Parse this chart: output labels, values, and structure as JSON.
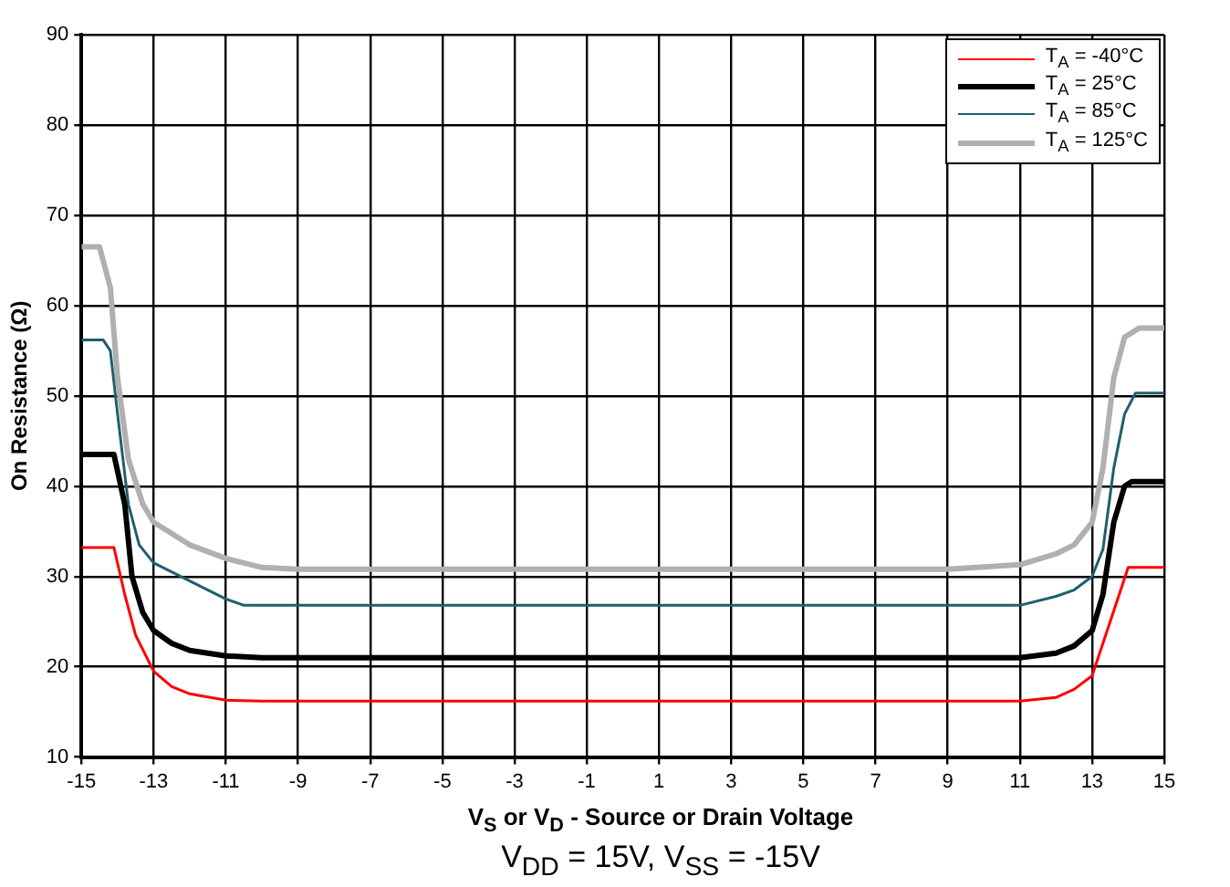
{
  "chart_data": {
    "type": "line",
    "xlabel": "V$_{S}$ or V$_{D}$ - Source or Drain Voltage",
    "ylabel": "On Resistance (Ω)",
    "annotations": [
      "V$_{DD}$ = 15V, V$_{SS}$ = -15V"
    ],
    "xlim": [
      -15,
      15
    ],
    "xticks": [
      -15,
      -13,
      -11,
      -9,
      -7,
      -5,
      -3,
      -1,
      1,
      3,
      5,
      7,
      9,
      11,
      13,
      15
    ],
    "ylim": [
      10,
      90
    ],
    "yticks": [
      10,
      20,
      30,
      40,
      50,
      60,
      70,
      80,
      90
    ],
    "grid": true,
    "legend": "top right",
    "series": [
      {
        "name": "T$_{A}$ = -40°C",
        "color": "#ff0000",
        "x": [
          -15,
          -14.1,
          -13.8,
          -13.5,
          -13,
          -12.5,
          -12,
          -11,
          -10,
          11,
          12,
          12.5,
          13,
          13.5,
          14,
          15
        ],
        "values": [
          33.2,
          33.2,
          28,
          23.5,
          19.5,
          17.8,
          17,
          16.3,
          16.2,
          16.2,
          16.6,
          17.5,
          19,
          25,
          31,
          31
        ]
      },
      {
        "name": "T$_{A}$ = 25°C",
        "color": "#000000",
        "x": [
          -15,
          -14.1,
          -13.8,
          -13.6,
          -13.3,
          -13,
          -12.5,
          -12,
          -11,
          -10,
          11,
          12,
          12.5,
          13,
          13.3,
          13.6,
          13.9,
          14.1,
          15
        ],
        "values": [
          43.5,
          43.5,
          38,
          30,
          26,
          24,
          22.6,
          21.8,
          21.2,
          21,
          21,
          21.5,
          22.3,
          24,
          28,
          36,
          40,
          40.5,
          40.5
        ]
      },
      {
        "name": "T$_{A}$ = 85°C",
        "color": "#1f5f6f",
        "x": [
          -15,
          -14.4,
          -14.2,
          -14,
          -13.7,
          -13.4,
          -13,
          -12,
          -11,
          -10.5,
          11,
          12,
          12.5,
          13,
          13.3,
          13.6,
          13.9,
          14.2,
          15
        ],
        "values": [
          56.2,
          56.2,
          55,
          48,
          38,
          33.5,
          31.5,
          29.5,
          27.5,
          26.8,
          26.8,
          27.8,
          28.5,
          30,
          33,
          42,
          48,
          50.3,
          50.3
        ]
      },
      {
        "name": "T$_{A}$ = 125°C",
        "color": "#b0b0b0",
        "x": [
          -15,
          -14.5,
          -14.2,
          -14,
          -13.7,
          -13.3,
          -13,
          -12,
          -11,
          -10,
          -9,
          9,
          11,
          12,
          12.5,
          13,
          13.3,
          13.6,
          13.9,
          14.3,
          15
        ],
        "values": [
          66.5,
          66.5,
          62,
          52,
          43,
          38,
          36,
          33.5,
          32,
          31,
          30.8,
          30.8,
          31.3,
          32.5,
          33.5,
          36,
          42,
          52,
          56.5,
          57.5,
          57.5
        ]
      }
    ]
  }
}
